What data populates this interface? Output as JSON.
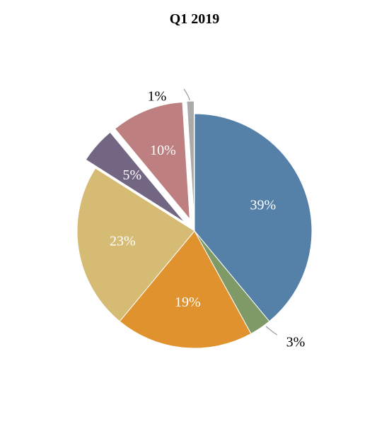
{
  "chart_data": {
    "type": "pie",
    "title": "Q1 2019",
    "legend": "none",
    "slices": [
      {
        "value": 39,
        "label": "39%",
        "color": "#5580a8",
        "exploded": false,
        "label_inside": true
      },
      {
        "value": 3,
        "label": "3%",
        "color": "#7f9967",
        "exploded": false,
        "label_inside": false
      },
      {
        "value": 19,
        "label": "19%",
        "color": "#e0922f",
        "exploded": false,
        "label_inside": true
      },
      {
        "value": 23,
        "label": "23%",
        "color": "#d5bb74",
        "exploded": false,
        "label_inside": true
      },
      {
        "value": 5,
        "label": "5%",
        "color": "#736682",
        "exploded": true,
        "label_inside": true
      },
      {
        "value": 10,
        "label": "10%",
        "color": "#bd7f7f",
        "exploded": true,
        "label_inside": true
      },
      {
        "value": 1,
        "label": "1%",
        "color": "#aaaaaa",
        "exploded": true,
        "label_inside": false
      }
    ],
    "inside_label_color": "#ffffff",
    "outside_label_color": "#000000",
    "leader_line_color": "#9a9a9a"
  }
}
